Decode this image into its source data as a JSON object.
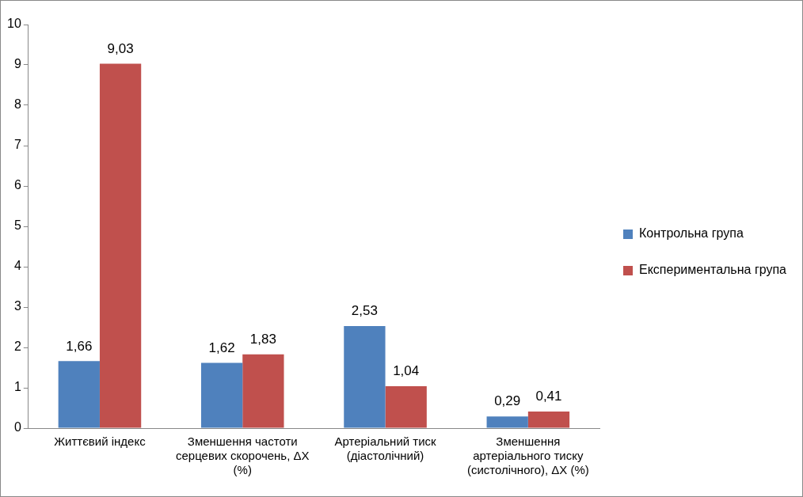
{
  "chart_data": {
    "type": "bar",
    "categories": [
      "Життєвий індекс",
      "Зменшення частоти серцевих скорочень, ΔX (%)",
      "Артеріальний тиск (діастолічний)",
      "Зменшення артеріального тиску (систолічного), ΔX (%)"
    ],
    "series": [
      {
        "name": "Контрольна група",
        "color": "#4f81bd",
        "values": [
          1.66,
          1.62,
          2.53,
          0.29
        ],
        "value_labels": [
          "1,66",
          "1,62",
          "2,53",
          "0,29"
        ]
      },
      {
        "name": "Експериментальна група",
        "color": "#c0504d",
        "values": [
          9.03,
          1.83,
          1.04,
          0.41
        ],
        "value_labels": [
          "9,03",
          "1,83",
          "1,04",
          "0,41"
        ]
      }
    ],
    "ylim": [
      0,
      10
    ],
    "yticks": [
      0,
      1,
      2,
      3,
      4,
      5,
      6,
      7,
      8,
      9,
      10
    ],
    "grid": false,
    "legend": "right"
  }
}
